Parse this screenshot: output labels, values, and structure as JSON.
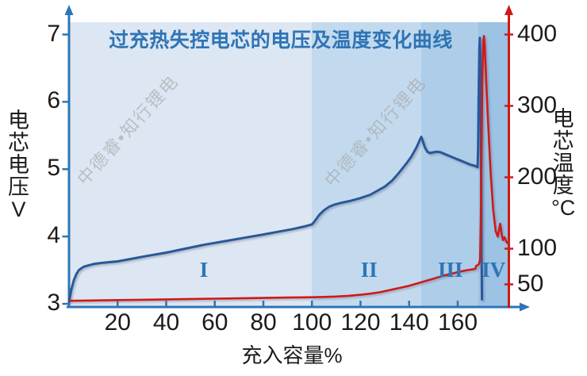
{
  "title": {
    "text": "过充热失控电芯的电压及温度变化曲线",
    "color": "#2E74B5"
  },
  "watermark": {
    "text": "中德睿•知行锂电",
    "color": "#A6A6A6"
  },
  "axes": {
    "left": {
      "title": "电芯电压V",
      "title_chars": [
        "电",
        "芯",
        "电",
        "压",
        "V"
      ],
      "color": "#2E75B6"
    },
    "right": {
      "title": "电芯温度°C",
      "title_chars": [
        "电",
        "芯",
        "温",
        "度",
        "°C"
      ],
      "color": "#CE1A1A"
    },
    "bottom": {
      "title": "充入容量%",
      "color": "#2E75B6"
    }
  },
  "chart_data": {
    "type": "line",
    "title": "过充热失控电芯的电压及温度变化曲线",
    "xlabel": "充入容量%",
    "ylabel_left": "电芯电压V",
    "ylabel_right": "电芯温度°C",
    "x_range": [
      0,
      181
    ],
    "y_left_range": [
      3,
      7
    ],
    "y_right_range": [
      20,
      430
    ],
    "x_ticks": [
      20,
      40,
      60,
      80,
      100,
      120,
      140,
      160
    ],
    "left_ticks": [
      7,
      6,
      5,
      4,
      3
    ],
    "right_ticks": [
      400,
      300,
      200,
      100,
      50
    ],
    "grid": false,
    "legend": "none",
    "phase_regions": [
      {
        "label": "I",
        "from": 0,
        "to": 100,
        "color": "#DCE7F3",
        "label_pct": 55.5
      },
      {
        "label": "II",
        "from": 100,
        "to": 145,
        "color": "#C3DAEE",
        "label_pct": 123.5
      },
      {
        "label": "III",
        "from": 145,
        "to": 168.5,
        "color": "#AECDE8",
        "label_pct": 157
      },
      {
        "label": "IV",
        "from": 168.5,
        "to": 181,
        "color": "#9CC2E4",
        "label_pct": 174.8
      }
    ],
    "series": [
      {
        "name": "电芯电压",
        "axis": "left",
        "unit": "V",
        "color": "#2A579A",
        "points": [
          [
            0,
            3.02
          ],
          [
            0.4,
            3.1
          ],
          [
            1,
            3.22
          ],
          [
            2,
            3.35
          ],
          [
            3,
            3.44
          ],
          [
            4,
            3.5
          ],
          [
            6,
            3.55
          ],
          [
            8,
            3.57
          ],
          [
            10,
            3.59
          ],
          [
            14,
            3.61
          ],
          [
            20,
            3.63
          ],
          [
            26,
            3.67
          ],
          [
            32,
            3.71
          ],
          [
            40,
            3.76
          ],
          [
            48,
            3.82
          ],
          [
            56,
            3.88
          ],
          [
            64,
            3.93
          ],
          [
            72,
            3.98
          ],
          [
            80,
            4.03
          ],
          [
            86,
            4.07
          ],
          [
            92,
            4.11
          ],
          [
            97,
            4.15
          ],
          [
            100,
            4.18
          ],
          [
            101,
            4.22
          ],
          [
            103,
            4.32
          ],
          [
            105,
            4.39
          ],
          [
            107,
            4.44
          ],
          [
            109,
            4.47
          ],
          [
            112,
            4.5
          ],
          [
            116,
            4.53
          ],
          [
            120,
            4.57
          ],
          [
            124,
            4.62
          ],
          [
            127,
            4.68
          ],
          [
            130,
            4.74
          ],
          [
            133,
            4.83
          ],
          [
            135,
            4.91
          ],
          [
            137,
            5.0
          ],
          [
            139,
            5.09
          ],
          [
            141,
            5.19
          ],
          [
            143,
            5.32
          ],
          [
            144.5,
            5.44
          ],
          [
            145,
            5.48
          ],
          [
            145.6,
            5.42
          ],
          [
            146.5,
            5.32
          ],
          [
            147.5,
            5.26
          ],
          [
            148.5,
            5.24
          ],
          [
            150,
            5.25
          ],
          [
            151.5,
            5.26
          ],
          [
            153,
            5.25
          ],
          [
            155,
            5.22
          ],
          [
            157,
            5.19
          ],
          [
            159,
            5.16
          ],
          [
            161,
            5.13
          ],
          [
            163,
            5.1
          ],
          [
            165,
            5.07
          ],
          [
            167,
            5.05
          ],
          [
            168.2,
            5.03
          ],
          [
            168.4,
            5.3
          ],
          [
            168.6,
            6.0
          ],
          [
            168.9,
            6.8
          ],
          [
            169.1,
            6.95
          ],
          [
            169.3,
            6.7
          ],
          [
            169.5,
            5.8
          ],
          [
            169.7,
            4.6
          ],
          [
            169.9,
            3.5
          ],
          [
            170,
            3.05
          ]
        ]
      },
      {
        "name": "电芯温度",
        "axis": "right",
        "unit": "°C",
        "color": "#CE1A1A",
        "points": [
          [
            0,
            27
          ],
          [
            10,
            27.5
          ],
          [
            20,
            28
          ],
          [
            30,
            28.5
          ],
          [
            40,
            29
          ],
          [
            50,
            29.5
          ],
          [
            60,
            30
          ],
          [
            70,
            30.5
          ],
          [
            80,
            31
          ],
          [
            90,
            31.5
          ],
          [
            100,
            32
          ],
          [
            105,
            32.5
          ],
          [
            110,
            33
          ],
          [
            115,
            34
          ],
          [
            120,
            35.5
          ],
          [
            124,
            37
          ],
          [
            128,
            39
          ],
          [
            132,
            42
          ],
          [
            136,
            45
          ],
          [
            140,
            48
          ],
          [
            143,
            51
          ],
          [
            146,
            54
          ],
          [
            149,
            57
          ],
          [
            152,
            60
          ],
          [
            155,
            63
          ],
          [
            158,
            65.5
          ],
          [
            161,
            68
          ],
          [
            164,
            70
          ],
          [
            166,
            71
          ],
          [
            167.3,
            72
          ],
          [
            167.6,
            76
          ],
          [
            168.3,
            77
          ],
          [
            168.8,
            79
          ],
          [
            169.2,
            85
          ],
          [
            169.5,
            140
          ],
          [
            169.8,
            230
          ],
          [
            170.1,
            330
          ],
          [
            170.5,
            390
          ],
          [
            170.8,
            398
          ],
          [
            171.1,
            385
          ],
          [
            171.8,
            330
          ],
          [
            172.6,
            270
          ],
          [
            173.6,
            205
          ],
          [
            174.6,
            155
          ],
          [
            175.6,
            125
          ],
          [
            176.5,
            117
          ],
          [
            177.1,
            128
          ],
          [
            177.5,
            135
          ],
          [
            178,
            122
          ],
          [
            178.6,
            112
          ],
          [
            179.3,
            116
          ],
          [
            180,
            110
          ],
          [
            180.7,
            107
          ]
        ]
      }
    ]
  }
}
